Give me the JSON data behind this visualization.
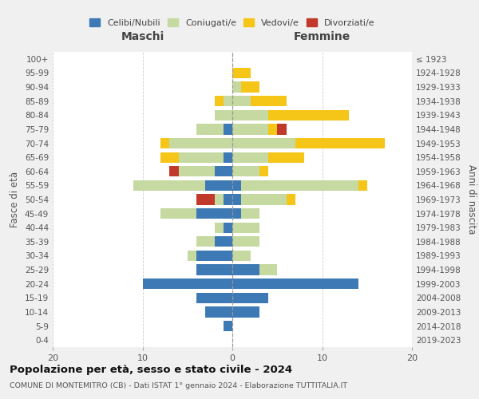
{
  "age_groups": [
    "0-4",
    "5-9",
    "10-14",
    "15-19",
    "20-24",
    "25-29",
    "30-34",
    "35-39",
    "40-44",
    "45-49",
    "50-54",
    "55-59",
    "60-64",
    "65-69",
    "70-74",
    "75-79",
    "80-84",
    "85-89",
    "90-94",
    "95-99",
    "100+"
  ],
  "birth_years": [
    "2019-2023",
    "2014-2018",
    "2009-2013",
    "2004-2008",
    "1999-2003",
    "1994-1998",
    "1989-1993",
    "1984-1988",
    "1979-1983",
    "1974-1978",
    "1969-1973",
    "1964-1968",
    "1959-1963",
    "1954-1958",
    "1949-1953",
    "1944-1948",
    "1939-1943",
    "1934-1938",
    "1929-1933",
    "1924-1928",
    "≤ 1923"
  ],
  "males": {
    "celibi": [
      0,
      1,
      3,
      4,
      10,
      4,
      4,
      2,
      1,
      4,
      1,
      3,
      2,
      1,
      0,
      1,
      0,
      0,
      0,
      0,
      0
    ],
    "coniugati": [
      0,
      0,
      0,
      0,
      0,
      0,
      1,
      2,
      1,
      4,
      1,
      8,
      4,
      5,
      7,
      3,
      2,
      1,
      0,
      0,
      0
    ],
    "vedovi": [
      0,
      0,
      0,
      0,
      0,
      0,
      0,
      0,
      0,
      0,
      0,
      0,
      0,
      2,
      1,
      0,
      0,
      1,
      0,
      0,
      0
    ],
    "divorziati": [
      0,
      0,
      0,
      0,
      0,
      0,
      0,
      0,
      0,
      0,
      2,
      0,
      1,
      0,
      0,
      0,
      0,
      0,
      0,
      0,
      0
    ]
  },
  "females": {
    "nubili": [
      0,
      0,
      3,
      4,
      14,
      3,
      0,
      0,
      0,
      1,
      1,
      1,
      0,
      0,
      0,
      0,
      0,
      0,
      0,
      0,
      0
    ],
    "coniugate": [
      0,
      0,
      0,
      0,
      0,
      2,
      2,
      3,
      3,
      2,
      5,
      13,
      3,
      4,
      7,
      4,
      4,
      2,
      1,
      0,
      0
    ],
    "vedove": [
      0,
      0,
      0,
      0,
      0,
      0,
      0,
      0,
      0,
      0,
      1,
      1,
      1,
      4,
      10,
      1,
      9,
      4,
      2,
      2,
      0
    ],
    "divorziate": [
      0,
      0,
      0,
      0,
      0,
      0,
      0,
      0,
      0,
      0,
      0,
      0,
      0,
      0,
      0,
      1,
      0,
      0,
      0,
      0,
      0
    ]
  },
  "colors": {
    "celibi": "#3d7ab5",
    "coniugati": "#c5d9a0",
    "vedovi": "#f5c518",
    "divorziati": "#c0392b"
  },
  "title1": "Popolazione per età, sesso e stato civile - 2024",
  "title2": "COMUNE DI MONTEMITRO (CB) - Dati ISTAT 1° gennaio 2024 - Elaborazione TUTTITALIA.IT",
  "xlim": 20,
  "ylabel_left": "Fasce di età",
  "ylabel_right": "Anni di nascita",
  "xlabel_left": "Maschi",
  "xlabel_right": "Femmine",
  "legend_labels": [
    "Celibi/Nubili",
    "Coniugati/e",
    "Vedovi/e",
    "Divorziati/e"
  ],
  "bg_color": "#f0f0f0",
  "plot_bg": "#ffffff"
}
